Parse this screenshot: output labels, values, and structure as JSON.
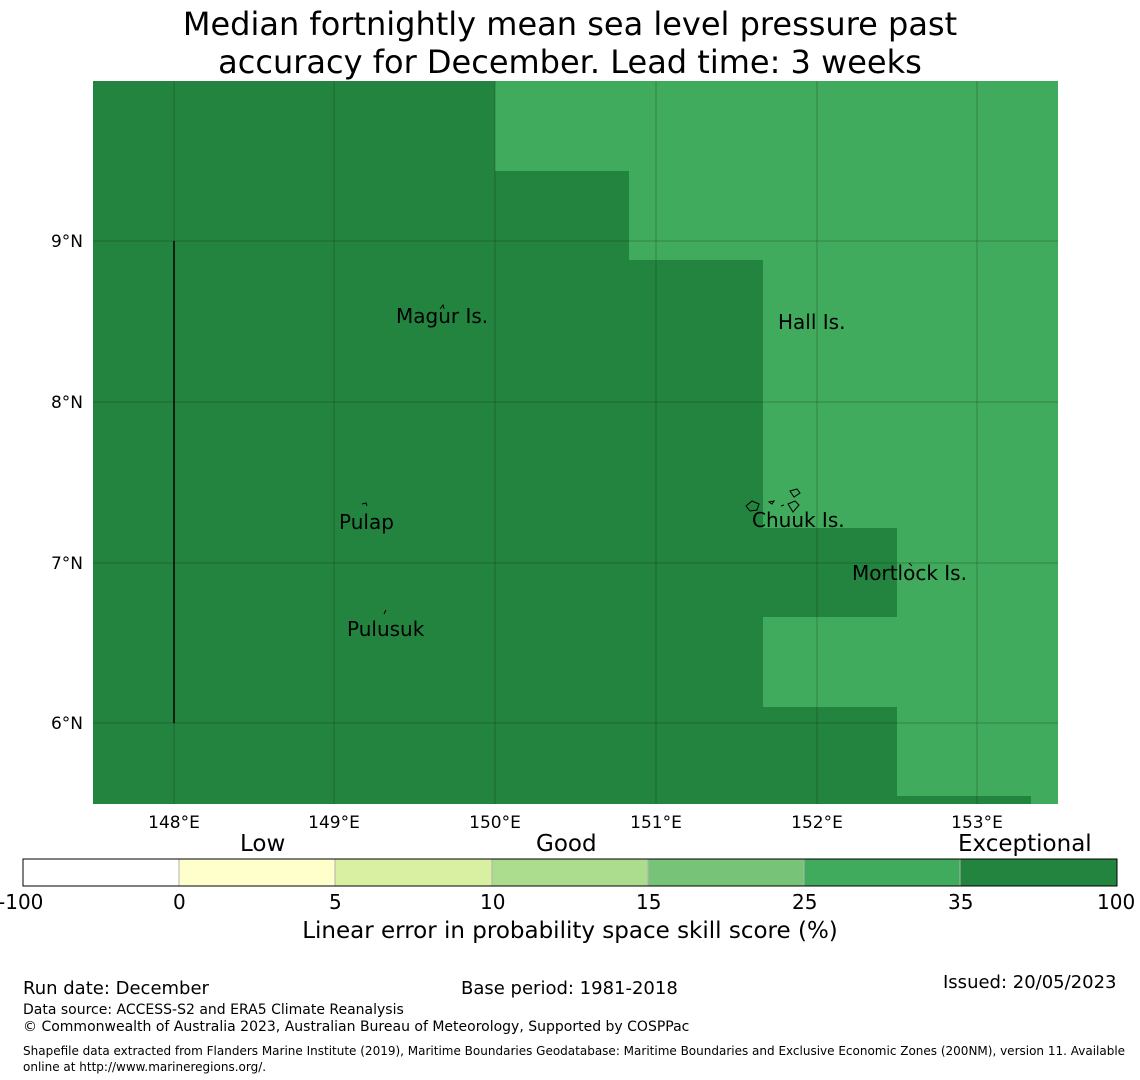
{
  "title_line1": "Median fortnightly mean sea level pressure past",
  "title_line2": "accuracy for December. Lead time: 3 weeks",
  "colors": {
    "exceptional": "#23843f",
    "good_high": "#40aa5d",
    "good_mid": "#77c479",
    "good_low": "#acdd8e",
    "low_high": "#d9f0a3",
    "low_low": "#ffffcc",
    "none": "#ffffff"
  },
  "map": {
    "lon_labels": [
      "148°E",
      "149°E",
      "150°E",
      "151°E",
      "152°E",
      "153°E"
    ],
    "lat_labels": [
      "9°N",
      "8°N",
      "7°N",
      "6°N"
    ],
    "places": [
      "Magur Is.",
      "Hall Is.",
      "Pulap",
      "Chuuk Is.",
      "Mortlock Is.",
      "Pulusuk"
    ]
  },
  "colorbar": {
    "categories": [
      "Low",
      "Good",
      "Exceptional"
    ],
    "ticks": [
      "-100",
      "0",
      "5",
      "10",
      "15",
      "25",
      "35",
      "100"
    ],
    "label": "Linear error in probability space skill score (%)"
  },
  "footer": {
    "run_date": "Run date: December",
    "base_period": "Base period: 1981-2018",
    "issued": "Issued: 20/05/2023",
    "data_source": "Data source: ACCESS-S2 and ERA5 Climate Reanalysis",
    "copyright": "© Commonwealth of Australia 2023, Australian Bureau of Meteorology, Supported by COSPPac",
    "shapefile": "Shapefile data extracted from Flanders Marine Institute (2019), Maritime Boundaries Geodatabase: Maritime Boundaries and Exclusive Economic Zones (200NM), version 11. Available online at http://www.marineregions.org/."
  }
}
